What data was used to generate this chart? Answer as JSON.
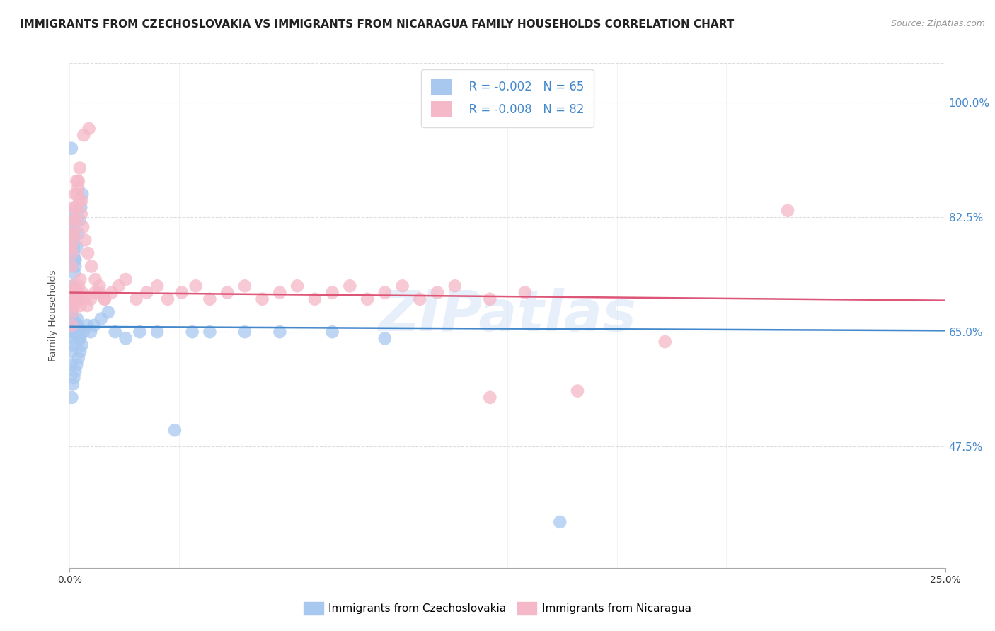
{
  "title": "IMMIGRANTS FROM CZECHOSLOVAKIA VS IMMIGRANTS FROM NICARAGUA FAMILY HOUSEHOLDS CORRELATION CHART",
  "source": "Source: ZipAtlas.com",
  "ylabel": "Family Households",
  "right_yticks": [
    47.5,
    65.0,
    82.5,
    100.0
  ],
  "legend_blue_r": "R = -0.002",
  "legend_blue_n": "N = 65",
  "legend_pink_r": "R = -0.008",
  "legend_pink_n": "N = 82",
  "blue_color": "#A8C8F0",
  "pink_color": "#F5B8C8",
  "blue_line_color": "#4488CC",
  "pink_line_color": "#DD5577",
  "watermark": "ZIPatlas",
  "blue_scatter_x": [
    0.05,
    0.08,
    0.1,
    0.12,
    0.15,
    0.18,
    0.2,
    0.22,
    0.25,
    0.28,
    0.05,
    0.08,
    0.1,
    0.13,
    0.16,
    0.2,
    0.24,
    0.28,
    0.32,
    0.36,
    0.05,
    0.07,
    0.09,
    0.11,
    0.14,
    0.17,
    0.21,
    0.26,
    0.3,
    0.35,
    0.06,
    0.09,
    0.12,
    0.16,
    0.2,
    0.25,
    0.3,
    0.4,
    0.5,
    0.6,
    0.7,
    0.9,
    1.1,
    1.3,
    1.6,
    2.0,
    2.5,
    3.0,
    4.0,
    5.0,
    6.0,
    7.5,
    9.0,
    0.05,
    0.06,
    0.07,
    0.08,
    0.09,
    0.1,
    0.11,
    0.12,
    0.14,
    0.16,
    3.5,
    14.0
  ],
  "blue_scatter_y": [
    65.0,
    67.0,
    66.0,
    65.5,
    66.5,
    65.0,
    64.5,
    66.0,
    65.5,
    64.0,
    68.0,
    70.0,
    72.0,
    74.0,
    76.0,
    78.0,
    80.0,
    82.0,
    84.0,
    86.0,
    60.0,
    62.0,
    63.0,
    64.0,
    65.0,
    66.0,
    67.0,
    65.0,
    64.0,
    63.0,
    55.0,
    57.0,
    58.0,
    59.0,
    60.0,
    61.0,
    62.0,
    65.0,
    66.0,
    65.0,
    66.0,
    67.0,
    68.0,
    65.0,
    64.0,
    65.0,
    65.0,
    50.0,
    65.0,
    65.0,
    65.0,
    65.0,
    64.0,
    93.0,
    83.0,
    82.0,
    81.0,
    80.0,
    79.0,
    78.0,
    77.0,
    76.0,
    75.0,
    65.0,
    36.0
  ],
  "pink_scatter_x": [
    0.05,
    0.08,
    0.1,
    0.12,
    0.15,
    0.18,
    0.2,
    0.23,
    0.26,
    0.3,
    0.05,
    0.07,
    0.09,
    0.11,
    0.14,
    0.17,
    0.21,
    0.25,
    0.29,
    0.34,
    0.06,
    0.09,
    0.12,
    0.16,
    0.2,
    0.25,
    0.3,
    0.36,
    0.42,
    0.5,
    0.6,
    0.72,
    0.85,
    1.0,
    1.2,
    1.4,
    1.6,
    1.9,
    2.2,
    2.5,
    2.8,
    3.2,
    3.6,
    4.0,
    4.5,
    5.0,
    5.5,
    6.0,
    6.5,
    7.0,
    7.5,
    8.0,
    8.5,
    9.0,
    9.5,
    10.0,
    10.5,
    11.0,
    12.0,
    13.0,
    0.05,
    0.07,
    0.1,
    0.13,
    0.16,
    0.2,
    0.24,
    0.28,
    0.33,
    0.38,
    0.44,
    0.52,
    0.62,
    0.73,
    0.85,
    1.0,
    20.5,
    17.0,
    14.5,
    12.0,
    0.4,
    0.55
  ],
  "pink_scatter_y": [
    70.0,
    72.0,
    71.0,
    70.5,
    71.5,
    70.0,
    69.5,
    71.0,
    70.5,
    69.0,
    75.0,
    77.0,
    79.0,
    80.0,
    82.0,
    84.0,
    86.0,
    88.0,
    90.0,
    85.0,
    66.0,
    68.0,
    69.0,
    70.0,
    71.0,
    72.0,
    73.0,
    71.0,
    70.0,
    69.0,
    70.0,
    71.0,
    72.0,
    70.0,
    71.0,
    72.0,
    73.0,
    70.0,
    71.0,
    72.0,
    70.0,
    71.0,
    72.0,
    70.0,
    71.0,
    72.0,
    70.0,
    71.0,
    72.0,
    70.0,
    71.0,
    72.0,
    70.0,
    71.0,
    72.0,
    70.0,
    71.0,
    72.0,
    70.0,
    71.0,
    78.0,
    80.0,
    82.0,
    84.0,
    86.0,
    88.0,
    87.0,
    85.0,
    83.0,
    81.0,
    79.0,
    77.0,
    75.0,
    73.0,
    71.0,
    70.0,
    83.5,
    63.5,
    56.0,
    55.0,
    95.0,
    96.0
  ],
  "xmin": 0.0,
  "xmax": 25.0,
  "ymin": 29.0,
  "ymax": 106.0,
  "blue_line_x": [
    0.0,
    25.0
  ],
  "blue_line_y": [
    65.8,
    65.2
  ],
  "pink_line_x": [
    0.0,
    25.0
  ],
  "pink_line_y": [
    71.0,
    69.8
  ],
  "background_color": "#FFFFFF",
  "grid_color": "#DDDDDD",
  "title_fontsize": 11,
  "tick_color_right": "#4488CC"
}
